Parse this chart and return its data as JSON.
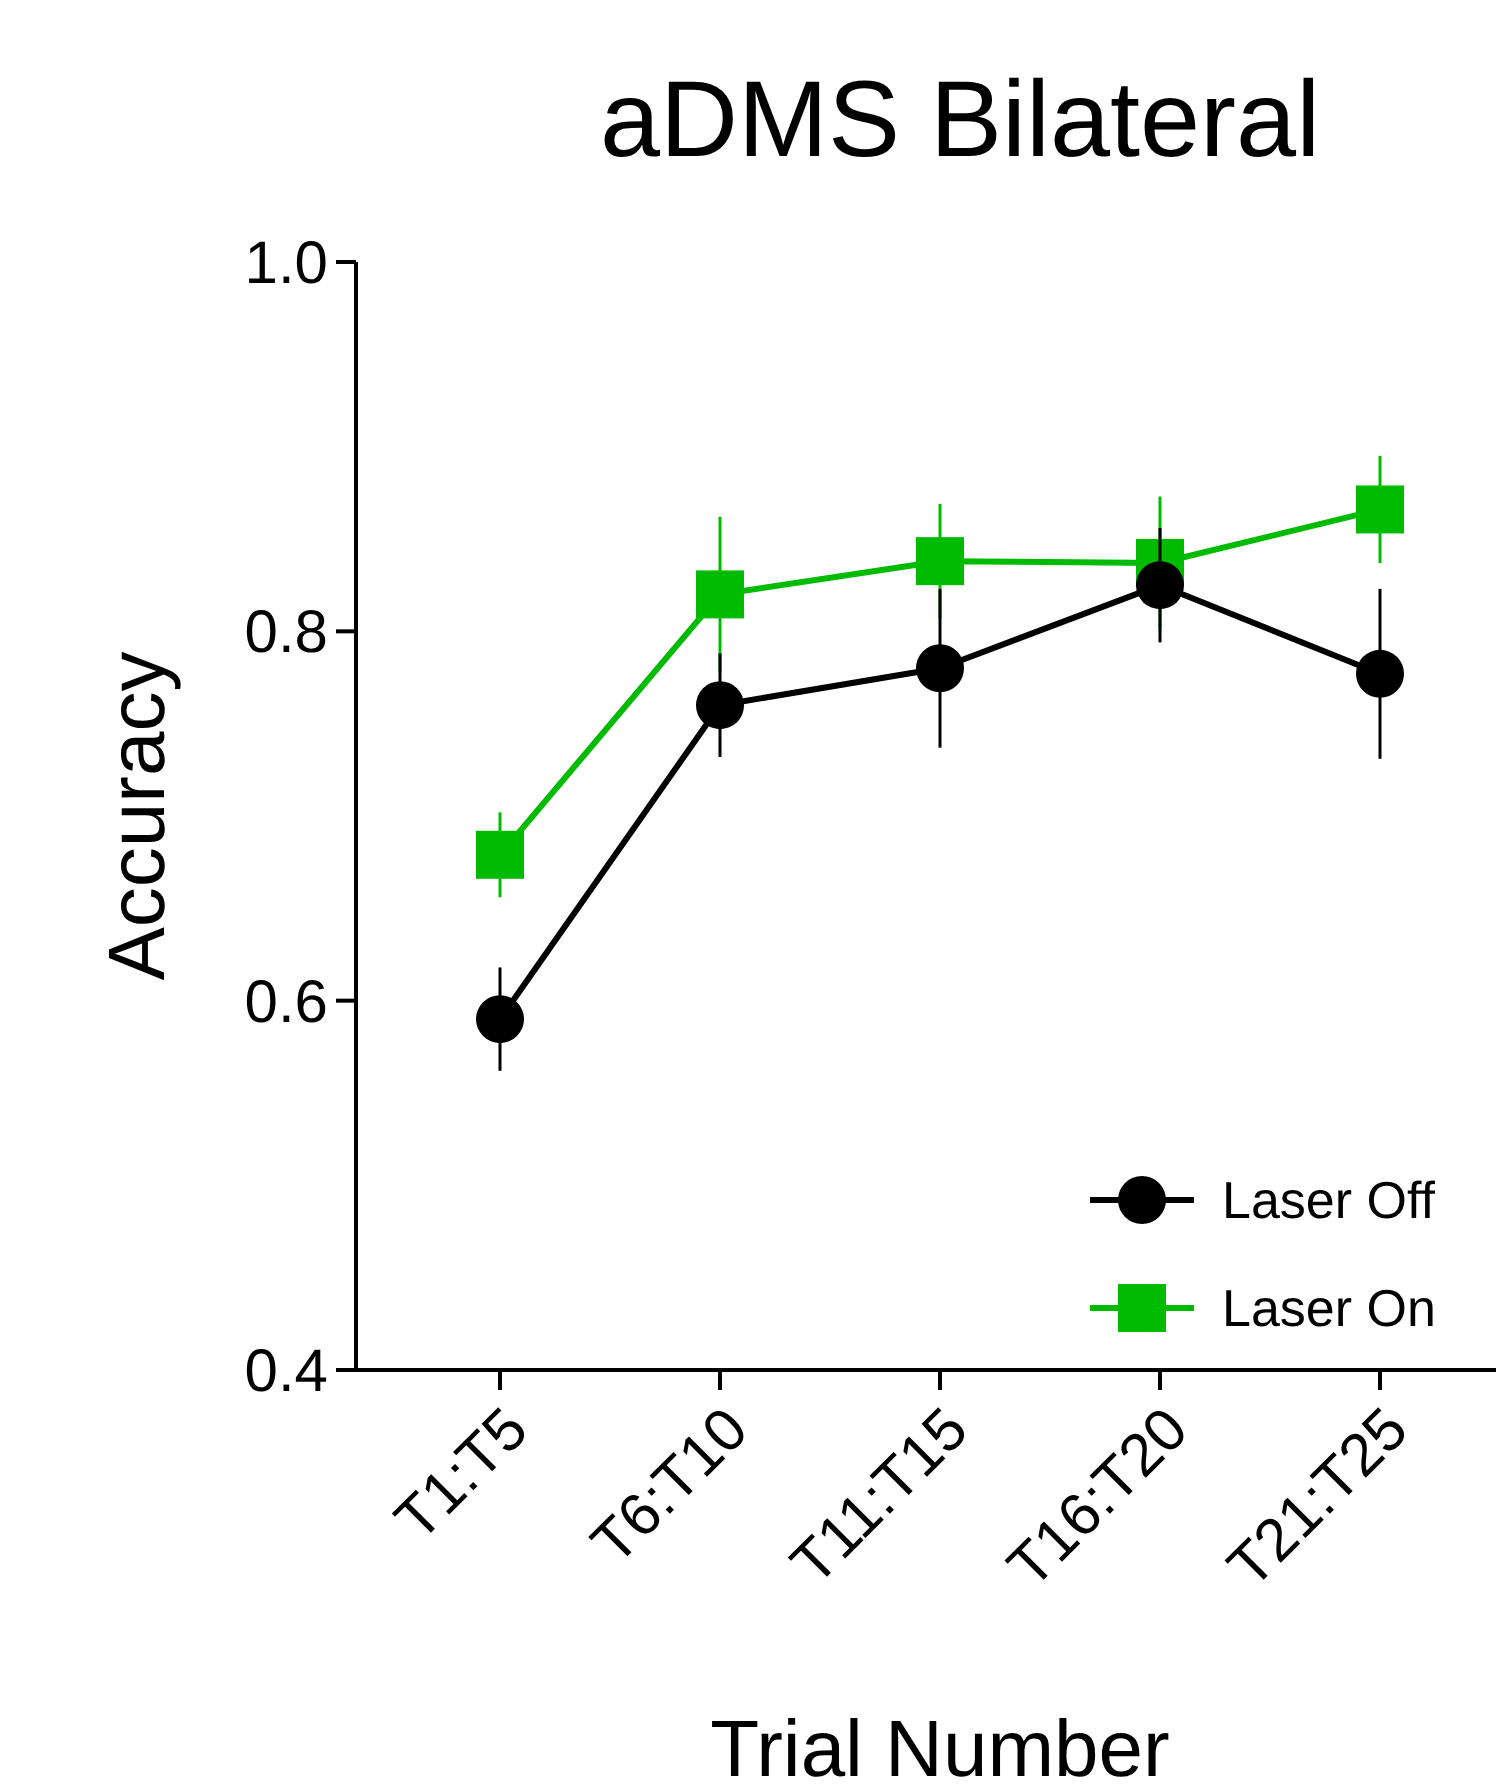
{
  "chart_data": {
    "type": "line",
    "title": "aDMS Bilateral",
    "xlabel": "Trial Number",
    "ylabel": "Accuracy",
    "categories": [
      "T1:T5",
      "T6:T10",
      "T11:T15",
      "T16:T20",
      "T21:T25"
    ],
    "series": [
      {
        "name": "Laser Off",
        "color": "#000000",
        "marker": "circle",
        "values": [
          0.59,
          0.76,
          0.78,
          0.825,
          0.777
        ],
        "errors": [
          0.028,
          0.028,
          0.043,
          0.031,
          0.046
        ]
      },
      {
        "name": "Laser On",
        "color": "#00bb00",
        "marker": "square",
        "values": [
          0.679,
          0.82,
          0.838,
          0.837,
          0.866
        ],
        "errors": [
          0.023,
          0.042,
          0.031,
          0.036,
          0.029
        ]
      }
    ],
    "ylim": [
      0.4,
      1.0
    ],
    "yticks": [
      {
        "value": 0.4,
        "label": "0.4"
      },
      {
        "value": 0.6,
        "label": "0.6"
      },
      {
        "value": 0.8,
        "label": "0.8"
      },
      {
        "value": 1.0,
        "label": "1.0"
      }
    ],
    "legend": "bottom right",
    "grid": false
  }
}
